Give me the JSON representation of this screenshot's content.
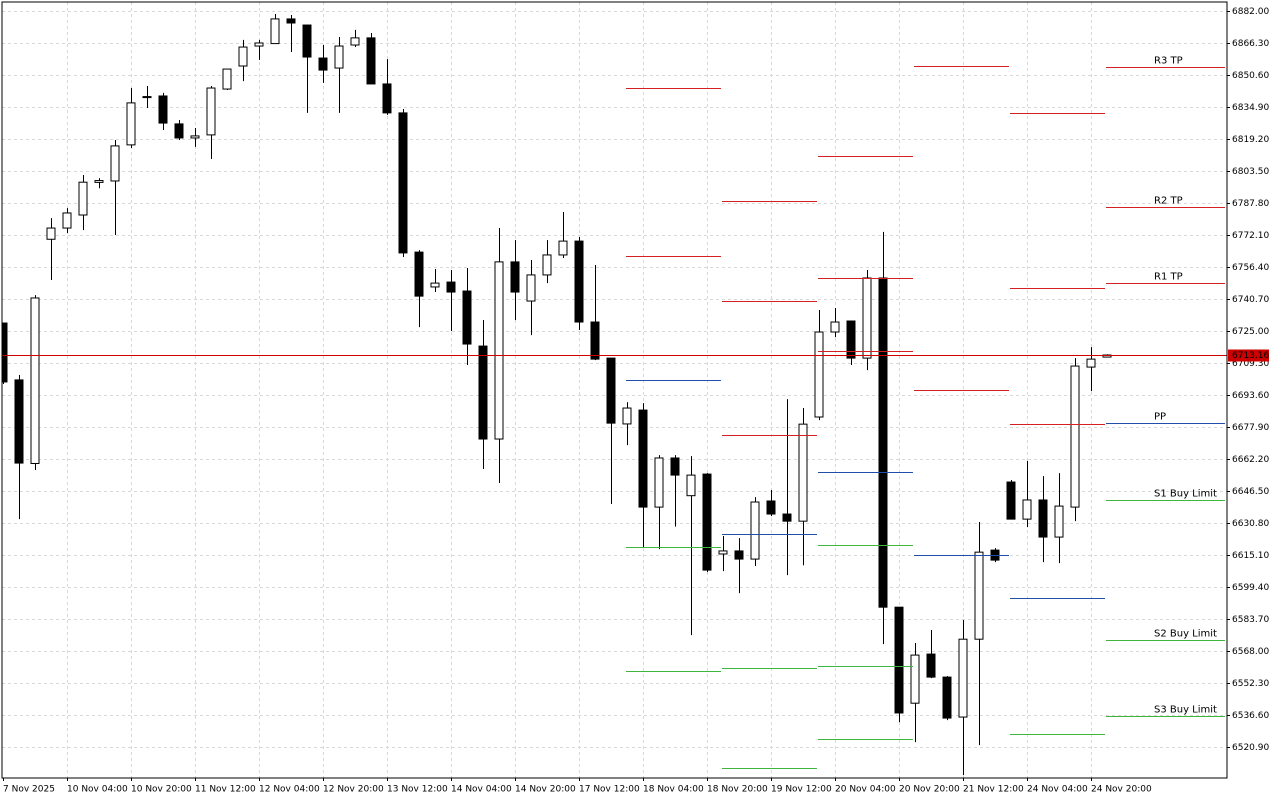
{
  "chart_data": {
    "type": "candlestick",
    "categories": [
      "7 Nov 2025",
      null,
      null,
      null,
      "10 Nov 04:00",
      null,
      null,
      null,
      "10 Nov 20:00",
      null,
      null,
      null,
      "11 Nov 12:00",
      null,
      null,
      null,
      "12 Nov 04:00",
      null,
      null,
      null,
      "12 Nov 20:00",
      null,
      null,
      null,
      "13 Nov 12:00",
      null,
      null,
      null,
      "14 Nov 04:00",
      null,
      null,
      null,
      "14 Nov 20:00",
      null,
      null,
      null,
      "17 Nov 12:00",
      null,
      null,
      null,
      "18 Nov 04:00",
      null,
      null,
      null,
      "18 Nov 20:00",
      null,
      null,
      null,
      "19 Nov 12:00",
      null,
      null,
      null,
      "20 Nov 04:00",
      null,
      null,
      null,
      "20 Nov 20:00",
      null,
      null,
      null,
      "21 Nov 12:00",
      null,
      null,
      null,
      "24 Nov 04:00",
      null,
      null,
      null,
      "24 Nov 20:00",
      null
    ],
    "open": [
      6728.9,
      6701,
      6660,
      6770,
      6775.5,
      6781.9,
      6797.9,
      6798.6,
      6816.3,
      6839.5,
      6840.3,
      6826.6,
      6819.7,
      6821.2,
      6843.7,
      6855,
      6864.8,
      6866,
      6878.1,
      6875.1,
      6858.9,
      6854,
      6865.3,
      6868.8,
      6846.2,
      6832,
      6763.7,
      6746.6,
      6749,
      6744.6,
      6717.6,
      6672,
      6758.9,
      6739.7,
      6752.5,
      6762.3,
      6769.1,
      6729.4,
      6711.7,
      6679.4,
      6686.2,
      6638.6,
      6662.7,
      6644.2,
      6654.8,
      6615.6,
      6617.1,
      6613.1,
      6641.6,
      6635.2,
      6631.7,
      6682.8,
      6724.5,
      6729.9,
      6711.7,
      6751,
      6589.5,
      6542.4,
      6566.5,
      6555.2,
      6535.6,
      6573.8,
      6617.5,
      6650.9,
      6632.7,
      6642.1,
      6623.9,
      6638.6,
      6707.3,
      6712.2
    ],
    "high": [
      6729,
      6703.4,
      6742.6,
      6780.4,
      6785.3,
      6801.5,
      6800,
      6818.7,
      6844.2,
      6845.2,
      6841.8,
      6828.5,
      6824.6,
      6845.2,
      6853.5,
      6867.8,
      6867.8,
      6880.5,
      6880,
      6875.1,
      6865.3,
      6869.2,
      6872.7,
      6871.2,
      6858.4,
      6833.9,
      6764.7,
      6755.4,
      6754.9,
      6755.9,
      6730.4,
      6775.5,
      6769.6,
      6759.8,
      6769.6,
      6783.4,
      6771.1,
      6757.4,
      6711.7,
      6690.1,
      6689.6,
      6664.1,
      6664.1,
      6663.6,
      6655.3,
      6624.4,
      6623.4,
      6643.5,
      6647,
      6691.6,
      6687.2,
      6735.3,
      6736.3,
      6729.9,
      6754.9,
      6773.6,
      6589.5,
      6571.9,
      6578.3,
      6555.7,
      6583.2,
      6631.3,
      6618.5,
      6651.9,
      6661.2,
      6653.8,
      6655.3,
      6711.7,
      6717.1,
      6713.6
    ],
    "low": [
      6699,
      6632.7,
      6656.8,
      6750,
      6773,
      6774.5,
      6795,
      6772.1,
      6814.8,
      6834.4,
      6823.6,
      6818.7,
      6815.3,
      6809.4,
      6843.2,
      6847.6,
      6858,
      6866,
      6861.9,
      6832,
      6846.7,
      6832,
      6864.3,
      6846.2,
      6831,
      6761.3,
      6726.9,
      6744.1,
      6725,
      6708.3,
      6657.3,
      6650.4,
      6730.4,
      6723,
      6748.5,
      6760.8,
      6725.5,
      6710.7,
      6640.1,
      6669,
      6619,
      6618,
      6629,
      6575.8,
      6606.7,
      6607.2,
      6596.4,
      6609.7,
      6634.2,
      6605.2,
      6610.1,
      6681.3,
      6722,
      6708.3,
      6705.8,
      6571.4,
      6533.1,
      6523.3,
      6554.7,
      6534.1,
      6507.1,
      6521.8,
      6611.6,
      6632.7,
      6628.8,
      6611.6,
      6611.1,
      6631.7,
      6695.5,
      6712.2
    ],
    "close": [
      6700,
      6660.2,
      6741.2,
      6775.5,
      6782.9,
      6798,
      6798.8,
      6815.8,
      6836.9,
      6840,
      6827,
      6819.7,
      6820.7,
      6844.2,
      6853.5,
      6864.3,
      6866.3,
      6878.1,
      6876.1,
      6859.4,
      6853,
      6864.8,
      6868.8,
      6846.2,
      6832,
      6763.3,
      6742.1,
      6748.5,
      6744.1,
      6718.6,
      6672,
      6758.9,
      6744.1,
      6752.5,
      6762.3,
      6769.1,
      6729.4,
      6711.2,
      6679.8,
      6687.2,
      6638.6,
      6662.7,
      6654.3,
      6654.3,
      6607.7,
      6617.1,
      6613.1,
      6641.1,
      6635.2,
      6631.7,
      6679.3,
      6724.5,
      6729.4,
      6711.7,
      6751,
      6589.5,
      6537.6,
      6566,
      6555.2,
      6535.1,
      6573.8,
      6616.5,
      6612.6,
      6632.7,
      6642.1,
      6623.9,
      6639.1,
      6707.8,
      6711.2,
      6713.2
    ],
    "up_color": "#ffffff",
    "down_color": "#000000",
    "ylim": [
      6505.7,
      6886.4
    ],
    "yticks": [
      {
        "value": 6882.0,
        "label": "6882.00"
      },
      {
        "value": 6866.3,
        "label": "6866.30"
      },
      {
        "value": 6850.6,
        "label": "6850.60"
      },
      {
        "value": 6834.9,
        "label": "6834.90"
      },
      {
        "value": 6819.2,
        "label": "6819.20"
      },
      {
        "value": 6803.5,
        "label": "6803.50"
      },
      {
        "value": 6787.8,
        "label": "6787.80"
      },
      {
        "value": 6772.1,
        "label": "6772.10"
      },
      {
        "value": 6756.4,
        "label": "6756.40"
      },
      {
        "value": 6740.7,
        "label": "6740.70"
      },
      {
        "value": 6725.0,
        "label": "6725.00"
      },
      {
        "value": 6709.3,
        "label": "6709.30"
      },
      {
        "value": 6693.6,
        "label": "6693.60"
      },
      {
        "value": 6677.9,
        "label": "6677.90"
      },
      {
        "value": 6662.2,
        "label": "6662.20"
      },
      {
        "value": 6646.5,
        "label": "6646.50"
      },
      {
        "value": 6630.8,
        "label": "6630.80"
      },
      {
        "value": 6615.1,
        "label": "6615.10"
      },
      {
        "value": 6599.4,
        "label": "6599.40"
      },
      {
        "value": 6583.7,
        "label": "6583.70"
      },
      {
        "value": 6568.0,
        "label": "6568.00"
      },
      {
        "value": 6552.3,
        "label": "6552.30"
      },
      {
        "value": 6536.6,
        "label": "6536.60"
      },
      {
        "value": 6520.9,
        "label": "6520.90"
      }
    ],
    "grid": true,
    "last_price": 6713.16,
    "last_price_color": "#cc0000",
    "levels": [
      {
        "name": "R3 TP",
        "color": "#d42020",
        "values": [
          null,
          6788.8,
          6810.8,
          null,
          6832,
          6854.5
        ]
      },
      {
        "name": "R2 TP",
        "color": "#d42020",
        "values": [
          6844.2,
          6739.7,
          6751,
          6855,
          6746.1,
          6785.8
        ]
      },
      {
        "name": "R1 TP",
        "color": "#d42020",
        "values": [
          6761.8,
          6673.9,
          6715.2,
          6696,
          6679.3,
          6748.5
        ]
      },
      {
        "name": "PP",
        "color": "#1f4fa8",
        "values": [
          6700.9,
          6625.4,
          6655.8,
          6615.1,
          6593.9,
          6679.8
        ]
      },
      {
        "name": "S1 Buy Limit",
        "color": "#3cb63c",
        "values": [
          6618.9,
          6559.6,
          6619.9,
          null,
          6527.2,
          6642.1
        ]
      },
      {
        "name": "S2 Buy Limit",
        "color": "#3cb63c",
        "values": [
          6558.1,
          6510.5,
          6560.6,
          null,
          null,
          6573.3
        ]
      },
      {
        "name": "S3 Buy Limit",
        "color": "#3cb63c",
        "values": [
          null,
          null,
          6524.8,
          null,
          null,
          6536.1
        ]
      }
    ]
  }
}
